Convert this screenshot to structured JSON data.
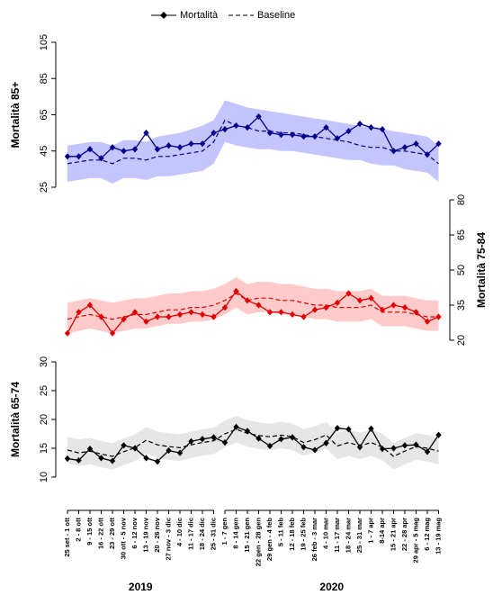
{
  "chart_data": [
    {
      "type": "line",
      "ylabel": "Mortalità 85+",
      "ylim": [
        25,
        105
      ],
      "yticks": [
        25,
        45,
        65,
        85,
        105
      ],
      "series": [
        {
          "name": "Mortalità",
          "color": "#00008b",
          "values": [
            42,
            42,
            46,
            41,
            47,
            45,
            46,
            55,
            46,
            48,
            47,
            49,
            49,
            55,
            57,
            59,
            58,
            64,
            55,
            54,
            54,
            53,
            53,
            58,
            52,
            56,
            60,
            58,
            57,
            45,
            47,
            49,
            43,
            49
          ]
        },
        {
          "name": "Baseline",
          "color": "#00008b",
          "values": [
            38,
            39,
            40,
            40,
            38,
            41,
            41,
            40,
            42,
            42,
            43,
            44,
            45,
            50,
            62,
            59,
            58,
            56,
            56,
            55,
            55,
            54,
            53,
            52,
            51,
            50,
            48,
            47,
            47,
            45,
            45,
            44,
            43,
            38
          ]
        }
      ],
      "band": {
        "color": "#c4c4ff",
        "lower": [
          28,
          29,
          30,
          30,
          27,
          30,
          30,
          29,
          31,
          31,
          32,
          33,
          34,
          38,
          50,
          48,
          47,
          46,
          46,
          45,
          45,
          44,
          43,
          42,
          41,
          40,
          40,
          38,
          37,
          37,
          35,
          34,
          33,
          28
        ],
        "upper": [
          48,
          49,
          50,
          50,
          48,
          51,
          51,
          50,
          53,
          54,
          55,
          57,
          59,
          62,
          73,
          71,
          69,
          68,
          67,
          66,
          65,
          64,
          63,
          62,
          61,
          60,
          59,
          58,
          57,
          56,
          55,
          54,
          53,
          48
        ]
      }
    },
    {
      "type": "line",
      "ylabel": "Mortalità 75-84",
      "ylim": [
        20,
        80
      ],
      "yticks": [
        20,
        35,
        50,
        65,
        80
      ],
      "axis_side": "right",
      "series": [
        {
          "color": "#e00000",
          "values": [
            23,
            32,
            35,
            30,
            23,
            29,
            32,
            28,
            30,
            30,
            31,
            32,
            31,
            30,
            34,
            41,
            37,
            35,
            32,
            32,
            31,
            30,
            33,
            34,
            36,
            40,
            37,
            38,
            33,
            35,
            34,
            32,
            28,
            30
          ]
        },
        {
          "color": "#e00000",
          "values": [
            29,
            30,
            31,
            30,
            29,
            30,
            31,
            31,
            32,
            33,
            33,
            34,
            34,
            35,
            37,
            40,
            37,
            38,
            38,
            37,
            37,
            36,
            35,
            35,
            34,
            34,
            34,
            35,
            32,
            32,
            32,
            31,
            30,
            30
          ]
        }
      ],
      "band": {
        "color": "#ffcaca",
        "lower": [
          23,
          24,
          25,
          24,
          23,
          24,
          25,
          25,
          26,
          27,
          27,
          28,
          28,
          29,
          31,
          34,
          31,
          32,
          32,
          31,
          31,
          30,
          29,
          29,
          28,
          28,
          28,
          29,
          26,
          26,
          26,
          25,
          24,
          24
        ],
        "upper": [
          36,
          37,
          38,
          37,
          36,
          37,
          38,
          38,
          39,
          40,
          40,
          41,
          41,
          42,
          44,
          47,
          44,
          45,
          45,
          44,
          44,
          43,
          42,
          42,
          41,
          41,
          41,
          42,
          39,
          39,
          39,
          38,
          37,
          37
        ]
      }
    },
    {
      "type": "line",
      "ylabel": "Mortalità 65-74",
      "ylim": [
        10,
        30
      ],
      "yticks": [
        10,
        15,
        20,
        25,
        30
      ],
      "categories": [
        "25 set - 1 ott",
        "2 - 8 ott",
        "9 - 15 ott",
        "16 - 22 ott",
        "23 - 29 ott",
        "30 ott - 5 nov",
        "6 - 12 nov",
        "13 - 19 nov",
        "20 - 26 nov",
        "27 nov - 3 dic",
        "4 - 10 dic",
        "11 - 17 dic",
        "18 - 24 dic",
        "25 - 31 dic",
        "1 - 7 gen",
        "8 - 14 gen",
        "15 - 21 gen",
        "22 gen - 28 gen",
        "29 gen - 4 feb",
        "5 - 11 feb",
        "12 - 18 feb",
        "19 - 25 feb",
        "26 feb - 3 mar",
        "4 - 10 mar",
        "11 - 17 mar",
        "18 - 24 mar",
        "25 - 31 mar",
        "1 - 7 apr",
        "8-14 apr",
        "15 - 21 apr",
        "22 - 28 apr",
        "29 apr - 5 mag",
        "6 - 12 mag",
        "13 - 19 mag"
      ],
      "years": [
        "2019",
        "2020"
      ],
      "series": [
        {
          "color": "#000000",
          "values": [
            13.2,
            12.9,
            14.9,
            13.3,
            12.8,
            15.5,
            15.0,
            13.3,
            12.7,
            14.6,
            14.2,
            16.2,
            16.6,
            16.9,
            16.0,
            18.7,
            18.0,
            16.7,
            15.4,
            16.6,
            16.9,
            15.2,
            14.7,
            15.9,
            18.5,
            18.3,
            15.2,
            18.4,
            14.9,
            15.0,
            15.5,
            15.6,
            14.4,
            17.3
          ]
        },
        {
          "color": "#000000",
          "values": [
            14.7,
            14.2,
            14.5,
            14.0,
            13.6,
            14.4,
            15.1,
            16.4,
            15.6,
            15.3,
            15.1,
            15.6,
            16.0,
            16.3,
            17.5,
            18.3,
            17.6,
            17.2,
            17.0,
            17.3,
            17.0,
            16.0,
            16.5,
            17.3,
            15.4,
            16.0,
            15.4,
            16.0,
            15.2,
            13.6,
            14.5,
            15.3,
            15.0,
            14.5
          ]
        }
      ],
      "band": {
        "color": "#e6e6e6",
        "lower": [
          12.4,
          11.9,
          12.2,
          11.7,
          11.3,
          12.1,
          12.8,
          14.1,
          13.3,
          13.0,
          12.8,
          13.3,
          13.7,
          14.0,
          15.2,
          16.0,
          15.3,
          14.9,
          14.7,
          15.0,
          14.7,
          13.7,
          14.2,
          15.0,
          13.1,
          13.7,
          13.1,
          13.7,
          12.9,
          11.3,
          12.2,
          13.0,
          12.7,
          12.2
        ],
        "upper": [
          17.0,
          16.5,
          16.8,
          16.3,
          15.9,
          16.7,
          17.4,
          18.7,
          17.9,
          17.6,
          17.4,
          17.9,
          18.3,
          18.6,
          19.8,
          20.6,
          19.9,
          19.5,
          19.3,
          19.6,
          19.3,
          18.3,
          18.8,
          19.6,
          17.7,
          18.3,
          17.7,
          18.3,
          17.5,
          15.9,
          16.8,
          17.6,
          17.3,
          16.8
        ]
      }
    }
  ]
}
